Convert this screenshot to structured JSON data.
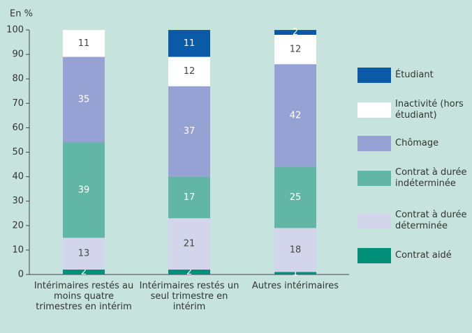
{
  "chart_data": {
    "type": "stacked_bar",
    "y_label": "En %",
    "categories": [
      "Intérimaires restés au moins quatre trimestres en intérim",
      "Intérimaires restés un seul trimestre en intérim",
      "Autres intérimaires"
    ],
    "ylim": [
      0,
      100
    ],
    "yticks": [
      0,
      10,
      20,
      30,
      40,
      50,
      60,
      70,
      80,
      90,
      100
    ],
    "series": [
      {
        "name": "Contrat aidé",
        "color": "#00907a",
        "values": [
          2,
          2,
          1
        ]
      },
      {
        "name": "Contrat à durée déterminée",
        "color": "#d3d6eb",
        "values": [
          13,
          21,
          18
        ]
      },
      {
        "name": "Contrat à durée indéterminée",
        "color": "#62b6a6",
        "values": [
          39,
          17,
          25
        ]
      },
      {
        "name": "Chômage",
        "color": "#97a2d4",
        "values": [
          35,
          37,
          42
        ]
      },
      {
        "name": "Inactivité (hors étudiant)",
        "color": "#ffffff",
        "values": [
          11,
          12,
          12
        ]
      },
      {
        "name": "Étudiant",
        "color": "#0b5aa8",
        "values": [
          null,
          11,
          2
        ]
      }
    ]
  }
}
